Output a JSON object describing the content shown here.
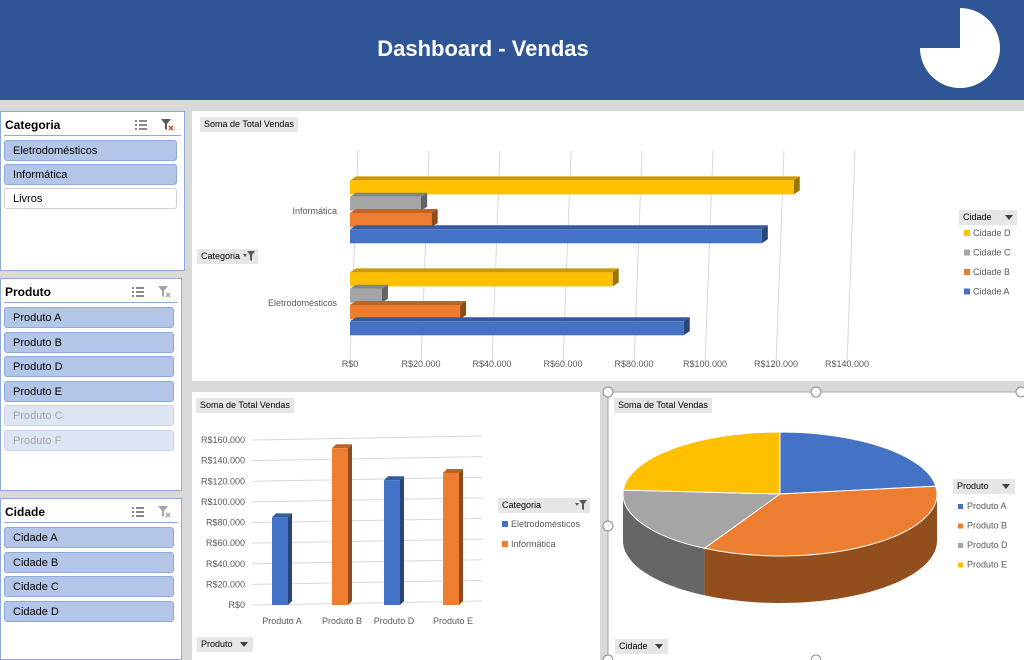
{
  "header": {
    "title": "Dashboard - Vendas",
    "background": "#2f5597"
  },
  "slicers": {
    "categoria": {
      "title": "Categoria",
      "items": [
        {
          "label": "Eletrodomésticos",
          "state": "selected"
        },
        {
          "label": "Informática",
          "state": "selected"
        },
        {
          "label": "Livros",
          "state": "unselected"
        }
      ]
    },
    "produto": {
      "title": "Produto",
      "items": [
        {
          "label": "Produto A",
          "state": "selected"
        },
        {
          "label": "Produto B",
          "state": "selected"
        },
        {
          "label": "Produto D",
          "state": "selected"
        },
        {
          "label": "Produto E",
          "state": "selected"
        },
        {
          "label": "Produto C",
          "state": "no-data"
        },
        {
          "label": "Produto F",
          "state": "no-data"
        }
      ]
    },
    "cidade": {
      "title": "Cidade",
      "items": [
        {
          "label": "Cidade A",
          "state": "selected"
        },
        {
          "label": "Cidade B",
          "state": "selected"
        },
        {
          "label": "Cidade C",
          "state": "selected"
        },
        {
          "label": "Cidade D",
          "state": "selected"
        }
      ]
    },
    "icons": [
      "multi-select-icon",
      "clear-filter-icon"
    ]
  },
  "colors": {
    "Cidade A": "#4472c4",
    "Cidade B": "#ed7d31",
    "Cidade C": "#a5a5a5",
    "Cidade D": "#ffc000",
    "Eletrodomésticos": "#4472c4",
    "Informática": "#ed7d31",
    "Produto A": "#4472c4",
    "Produto B": "#ed7d31",
    "Produto D": "#a5a5a5",
    "Produto E": "#ffc000"
  },
  "charts": {
    "bar": {
      "value_tag": "Soma de Total Vendas",
      "axis_tag": "Categoria",
      "legend_tag": "Cidade"
    },
    "column": {
      "value_tag": "Soma de Total Vendas",
      "axis_tag": "Produto",
      "legend_tag": "Categoria"
    },
    "pie": {
      "value_tag": "Soma de Total Vendas",
      "axis_tag": "Cidade",
      "legend_tag": "Produto"
    }
  },
  "chart_data": [
    {
      "type": "bar",
      "orientation": "horizontal",
      "categories": [
        "Eletrodomésticos",
        "Informática"
      ],
      "series": [
        {
          "name": "Cidade A",
          "values": [
            94000,
            116000
          ]
        },
        {
          "name": "Cidade B",
          "values": [
            31000,
            23000
          ]
        },
        {
          "name": "Cidade C",
          "values": [
            9000,
            20000
          ]
        },
        {
          "name": "Cidade D",
          "values": [
            74000,
            125000
          ]
        }
      ],
      "xlim": [
        0,
        140000
      ],
      "ticks": [
        "R$0",
        "R$20.000",
        "R$40.000",
        "R$60.000",
        "R$80.000",
        "R$100.000",
        "R$120.000",
        "R$140.000"
      ],
      "legend_order": [
        "Cidade D",
        "Cidade C",
        "Cidade B",
        "Cidade A"
      ],
      "legend_position": "right",
      "grid": true
    },
    {
      "type": "bar",
      "orientation": "vertical",
      "categories": [
        "Produto A",
        "Produto B",
        "Produto D",
        "Produto E"
      ],
      "points": [
        {
          "category": "Produto A",
          "series": "Eletrodomésticos",
          "value": 85000
        },
        {
          "category": "Produto B",
          "series": "Informática",
          "value": 152000
        },
        {
          "category": "Produto D",
          "series": "Eletrodomésticos",
          "value": 121000
        },
        {
          "category": "Produto E",
          "series": "Informática",
          "value": 128000
        }
      ],
      "legend": [
        "Eletrodomésticos",
        "Informática"
      ],
      "ylim": [
        0,
        160000
      ],
      "ticks": [
        "R$0",
        "R$20.000",
        "R$40.000",
        "R$60.000",
        "R$80.000",
        "R$100.000",
        "R$120.000",
        "R$140.000",
        "R$160.000"
      ],
      "legend_position": "right",
      "grid": true
    },
    {
      "type": "pie",
      "slices": [
        {
          "label": "Produto A",
          "value": 23
        },
        {
          "label": "Produto B",
          "value": 35
        },
        {
          "label": "Produto D",
          "value": 18
        },
        {
          "label": "Produto E",
          "value": 24
        }
      ],
      "legend_position": "right"
    }
  ]
}
